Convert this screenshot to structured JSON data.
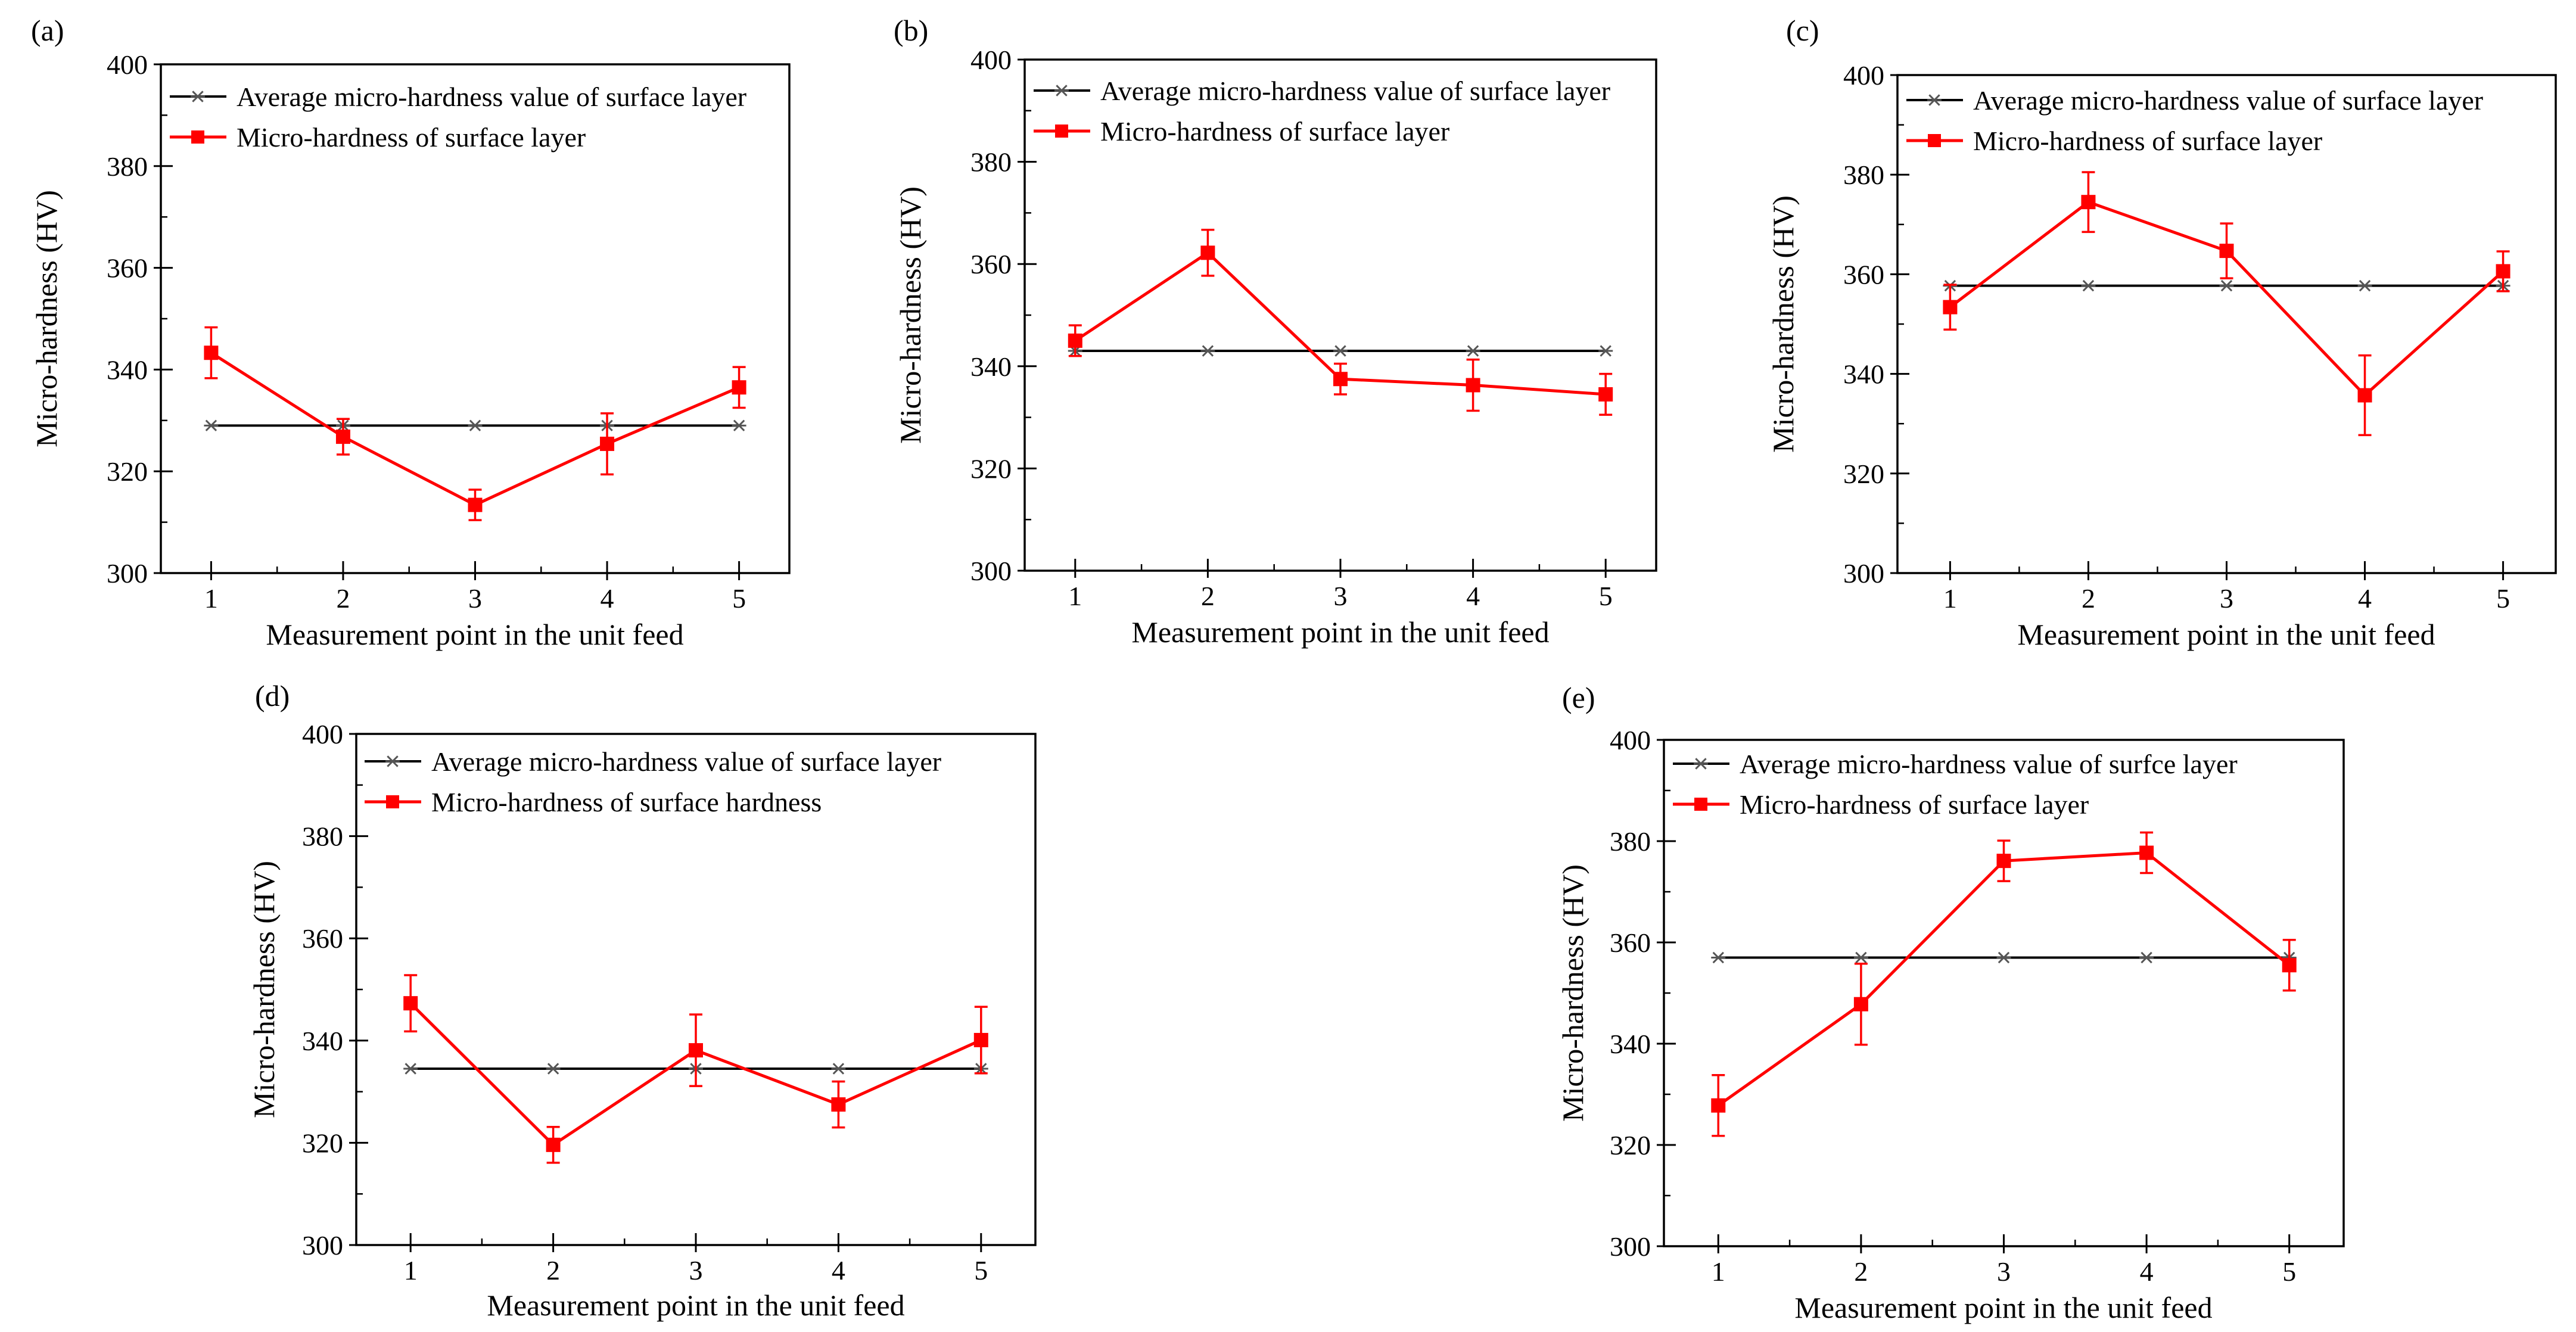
{
  "chart_data": [
    {
      "panel": "(a)",
      "type": "line",
      "xlabel": "Measurement point in the unit feed",
      "ylabel": "Micro-hardness (HV)",
      "ylim": [
        300,
        400
      ],
      "yticks": [
        300,
        320,
        340,
        360,
        380,
        400
      ],
      "categories": [
        "1",
        "2",
        "3",
        "4",
        "5"
      ],
      "legend_position": "top-left",
      "series": [
        {
          "name": "Average micro-hardness value of surface layer",
          "marker": "asterisk",
          "color": "#000000",
          "values": [
            329,
            329,
            329,
            329,
            329
          ]
        },
        {
          "name": "Micro-hardness of surface layer",
          "marker": "square",
          "color": "#ff0000",
          "values": [
            343.3,
            326.8,
            313.4,
            325.4,
            336.5
          ],
          "errors": [
            5,
            3.5,
            3,
            6,
            4
          ]
        }
      ]
    },
    {
      "panel": "(b)",
      "type": "line",
      "xlabel": "Measurement point in the unit feed",
      "ylabel": "Micro-hardness (HV)",
      "ylim": [
        300,
        400
      ],
      "yticks": [
        300,
        320,
        340,
        360,
        380,
        400
      ],
      "categories": [
        "1",
        "2",
        "3",
        "4",
        "5"
      ],
      "legend_position": "top-left",
      "series": [
        {
          "name": "Average micro-hardness value of surface layer",
          "marker": "asterisk",
          "color": "#000000",
          "values": [
            343,
            343,
            343,
            343,
            343
          ]
        },
        {
          "name": "Micro-hardness of surface layer",
          "marker": "square",
          "color": "#ff0000",
          "values": [
            345,
            362.2,
            337.5,
            336.3,
            334.5
          ],
          "errors": [
            3,
            4.5,
            3,
            5,
            4
          ]
        }
      ]
    },
    {
      "panel": "(c)",
      "type": "line",
      "xlabel": "Measurement point in the unit feed",
      "ylabel": "Micro-hardness (HV)",
      "ylim": [
        300,
        400
      ],
      "yticks": [
        300,
        320,
        340,
        360,
        380,
        400
      ],
      "categories": [
        "1",
        "2",
        "3",
        "4",
        "5"
      ],
      "legend_position": "top-left",
      "series": [
        {
          "name": "Average micro-hardness value of surface layer",
          "marker": "asterisk",
          "color": "#000000",
          "values": [
            357.7,
            357.7,
            357.7,
            357.7,
            357.7
          ]
        },
        {
          "name": "Micro-hardness of surface layer",
          "marker": "square",
          "color": "#ff0000",
          "values": [
            353.4,
            374.5,
            364.7,
            335.7,
            360.6
          ],
          "errors": [
            4.5,
            6,
            5.5,
            8,
            4
          ]
        }
      ]
    },
    {
      "panel": "(d)",
      "type": "line",
      "xlabel": "Measurement point in the unit feed",
      "ylabel": "Micro-hardness (HV)",
      "ylim": [
        300,
        400
      ],
      "yticks": [
        300,
        320,
        340,
        360,
        380,
        400
      ],
      "categories": [
        "1",
        "2",
        "3",
        "4",
        "5"
      ],
      "legend_position": "top-left",
      "series": [
        {
          "name": "Average micro-hardness value of surface layer",
          "marker": "asterisk",
          "color": "#000000",
          "values": [
            334.5,
            334.5,
            334.5,
            334.5,
            334.5
          ]
        },
        {
          "name": "Micro-hardness of surface hardness",
          "marker": "square",
          "color": "#ff0000",
          "values": [
            347.3,
            319.6,
            338.1,
            327.5,
            340.1
          ],
          "errors": [
            5.5,
            3.5,
            7,
            4.5,
            6.5
          ]
        }
      ]
    },
    {
      "panel": "(e)",
      "type": "line",
      "xlabel": "Measurement point in the unit feed",
      "ylabel": "Micro-hardness (HV)",
      "ylim": [
        300,
        400
      ],
      "yticks": [
        300,
        320,
        340,
        360,
        380,
        400
      ],
      "categories": [
        "1",
        "2",
        "3",
        "4",
        "5"
      ],
      "legend_position": "top-left",
      "series": [
        {
          "name": "Average micro-hardness value of surfce layer",
          "marker": "asterisk",
          "color": "#000000",
          "values": [
            357,
            357,
            357,
            357,
            357
          ]
        },
        {
          "name": "Micro-hardness of surface layer",
          "marker": "square",
          "color": "#ff0000",
          "values": [
            327.8,
            347.8,
            376.1,
            377.7,
            355.5
          ],
          "errors": [
            6,
            8,
            4,
            4,
            5
          ]
        }
      ]
    }
  ]
}
